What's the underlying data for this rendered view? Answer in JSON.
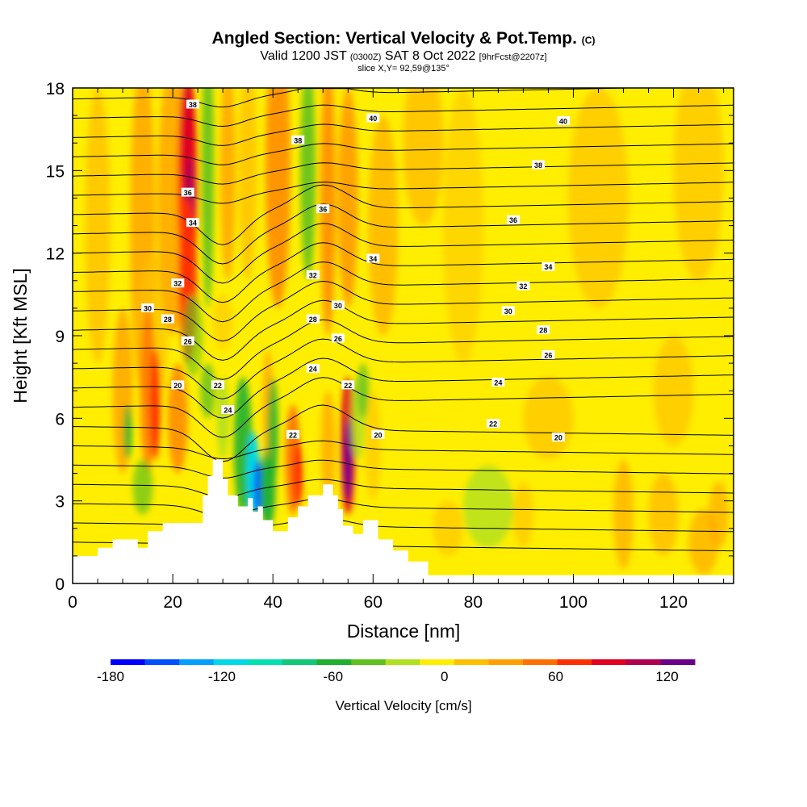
{
  "header": {
    "title": "Angled Section: Vertical Velocity & Pot.Temp.",
    "title_unit": "(C)",
    "valid_a": "Valid 1200 JST",
    "valid_z": "(0300Z)",
    "valid_b": "SAT 8 Oct 2022",
    "forecast": "[9hrFcst@2207z]",
    "slice": "slice X,Y= 92,59@135°"
  },
  "chart_data": {
    "type": "heatmap",
    "xlabel": "Distance [nm]",
    "ylabel": "Height [Kft MSL]",
    "xlim": [
      0,
      132
    ],
    "ylim": [
      0,
      18
    ],
    "x_ticks": [
      "0",
      "20",
      "40",
      "60",
      "80",
      "100",
      "120"
    ],
    "y_ticks": [
      "0",
      "3",
      "6",
      "9",
      "12",
      "15",
      "18"
    ],
    "colorbar": {
      "title": "Vertical Velocity [cm/s]",
      "range": [
        -180,
        135
      ],
      "step": 15,
      "tick_labels": [
        "-180",
        "-120",
        "-60",
        "0",
        "60",
        "120"
      ],
      "colors": [
        "#0000ff",
        "#0050ff",
        "#00a0ff",
        "#00d8e8",
        "#00e0b0",
        "#10c878",
        "#20b030",
        "#60c020",
        "#b0e020",
        "#ffee00",
        "#ffc000",
        "#ffa000",
        "#ff7000",
        "#ff3000",
        "#e00020",
        "#b00050",
        "#6a0088"
      ]
    },
    "terrain_profile": [
      [
        0,
        0
      ],
      [
        0,
        1
      ],
      [
        5,
        1
      ],
      [
        5,
        1.3
      ],
      [
        8,
        1.3
      ],
      [
        8,
        1.6
      ],
      [
        13,
        1.6
      ],
      [
        13,
        1.3
      ],
      [
        15,
        1.3
      ],
      [
        15,
        1.9
      ],
      [
        18,
        1.9
      ],
      [
        18,
        2.2
      ],
      [
        26,
        2.2
      ],
      [
        26,
        3.2
      ],
      [
        27,
        3.2
      ],
      [
        27,
        3.9
      ],
      [
        28,
        3.9
      ],
      [
        28,
        4.5
      ],
      [
        30,
        4.5
      ],
      [
        30,
        3.8
      ],
      [
        31,
        3.8
      ],
      [
        31,
        3.2
      ],
      [
        33,
        3.2
      ],
      [
        33,
        2.8
      ],
      [
        35,
        2.8
      ],
      [
        35,
        3.1
      ],
      [
        36,
        3.1
      ],
      [
        36,
        2.6
      ],
      [
        37,
        2.6
      ],
      [
        37,
        2.8
      ],
      [
        38,
        2.8
      ],
      [
        38,
        2.3
      ],
      [
        40,
        2.3
      ],
      [
        40,
        1.9
      ],
      [
        43,
        1.9
      ],
      [
        43,
        2.4
      ],
      [
        45,
        2.4
      ],
      [
        45,
        2.8
      ],
      [
        47,
        2.8
      ],
      [
        47,
        3.2
      ],
      [
        50,
        3.2
      ],
      [
        50,
        3.6
      ],
      [
        52,
        3.6
      ],
      [
        52,
        3.2
      ],
      [
        53,
        3.2
      ],
      [
        53,
        2.7
      ],
      [
        54,
        2.7
      ],
      [
        54,
        2.1
      ],
      [
        56,
        2.1
      ],
      [
        56,
        1.8
      ],
      [
        58,
        1.8
      ],
      [
        58,
        2.3
      ],
      [
        61,
        2.3
      ],
      [
        61,
        1.6
      ],
      [
        64,
        1.6
      ],
      [
        64,
        1.2
      ],
      [
        67,
        1.2
      ],
      [
        67,
        0.8
      ],
      [
        71,
        0.8
      ],
      [
        71,
        0.3
      ],
      [
        132,
        0.3
      ],
      [
        132,
        0
      ]
    ],
    "contour_labels": [
      {
        "x": 24,
        "y": 17.4,
        "text": "38"
      },
      {
        "x": 60,
        "y": 16.9,
        "text": "40"
      },
      {
        "x": 98,
        "y": 16.8,
        "text": "40"
      },
      {
        "x": 45,
        "y": 16.1,
        "text": "38"
      },
      {
        "x": 93,
        "y": 15.2,
        "text": "38"
      },
      {
        "x": 23,
        "y": 14.2,
        "text": "36"
      },
      {
        "x": 50,
        "y": 13.6,
        "text": "36"
      },
      {
        "x": 88,
        "y": 13.2,
        "text": "36"
      },
      {
        "x": 24,
        "y": 13.1,
        "text": "34"
      },
      {
        "x": 60,
        "y": 11.8,
        "text": "34"
      },
      {
        "x": 95,
        "y": 11.5,
        "text": "34"
      },
      {
        "x": 21,
        "y": 10.9,
        "text": "32"
      },
      {
        "x": 48,
        "y": 11.2,
        "text": "32"
      },
      {
        "x": 90,
        "y": 10.8,
        "text": "32"
      },
      {
        "x": 15,
        "y": 10,
        "text": "30"
      },
      {
        "x": 53,
        "y": 10.1,
        "text": "30"
      },
      {
        "x": 87,
        "y": 9.9,
        "text": "30"
      },
      {
        "x": 19,
        "y": 9.6,
        "text": "28"
      },
      {
        "x": 48,
        "y": 9.6,
        "text": "28"
      },
      {
        "x": 94,
        "y": 9.2,
        "text": "28"
      },
      {
        "x": 23,
        "y": 8.8,
        "text": "26"
      },
      {
        "x": 53,
        "y": 8.9,
        "text": "26"
      },
      {
        "x": 95,
        "y": 8.3,
        "text": "26"
      },
      {
        "x": 48,
        "y": 7.8,
        "text": "24"
      },
      {
        "x": 85,
        "y": 7.3,
        "text": "24"
      },
      {
        "x": 31,
        "y": 6.3,
        "text": "24"
      },
      {
        "x": 21,
        "y": 7.2,
        "text": "20"
      },
      {
        "x": 29,
        "y": 7.2,
        "text": "22"
      },
      {
        "x": 55,
        "y": 7.2,
        "text": "22"
      },
      {
        "x": 84,
        "y": 5.8,
        "text": "22"
      },
      {
        "x": 44,
        "y": 5.4,
        "text": "22"
      },
      {
        "x": 61,
        "y": 5.4,
        "text": "20"
      },
      {
        "x": 97,
        "y": 5.3,
        "text": "20"
      }
    ]
  }
}
